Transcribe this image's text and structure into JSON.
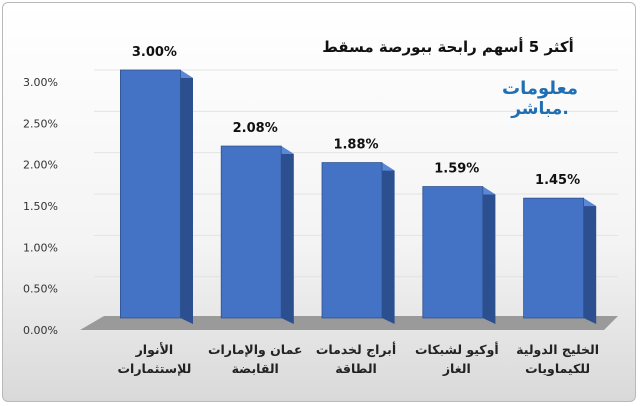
{
  "chart_data": {
    "type": "bar",
    "title": "أكثر 5 أسهم رابحة ببورصة مسقط",
    "categories": [
      [
        "الأنوار",
        "للإستثمارات"
      ],
      [
        "عمان والإمارات",
        "القابضة"
      ],
      [
        "أبراج لخدمات",
        "الطاقة"
      ],
      [
        "أوكيو لشبكات",
        "الغاز"
      ],
      [
        "الخليج الدولية",
        "للكيماويات"
      ]
    ],
    "values": [
      3.0,
      2.08,
      1.88,
      1.59,
      1.45
    ],
    "data_labels": [
      "3.00%",
      "2.08%",
      "1.88%",
      "1.59%",
      "1.45%"
    ],
    "y_ticks": [
      "0.00%",
      "0.50%",
      "1.00%",
      "1.50%",
      "2.00%",
      "2.50%",
      "3.00%"
    ],
    "ylim": [
      0,
      3.0
    ],
    "colors": {
      "bar_front": "#4472c4",
      "bar_side": "#2c4f8f",
      "bar_top": "#5a88d8",
      "floor": "#9a9a9a"
    }
  },
  "logo": {
    "line1": "معلومات",
    "line2": "مباشر."
  }
}
